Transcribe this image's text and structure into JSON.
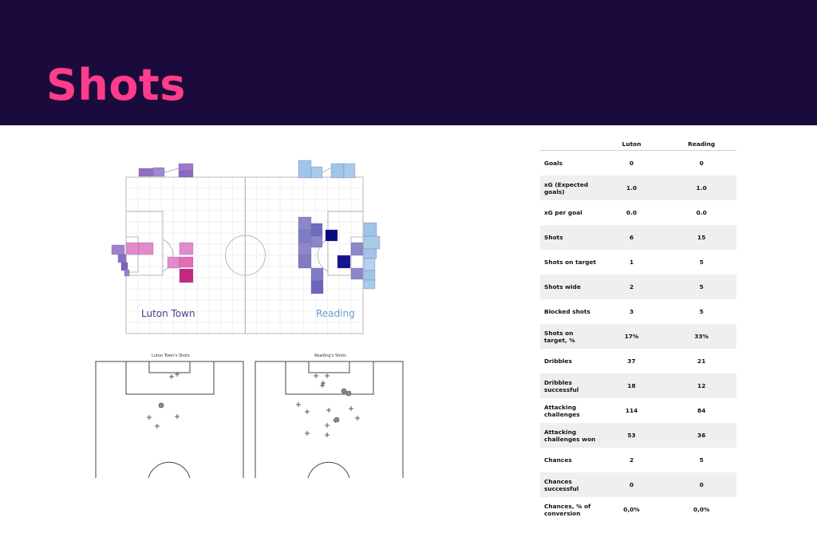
{
  "page": {
    "title": "Shots"
  },
  "colors": {
    "banner": "#1b0a3c",
    "title": "#ff3d8b",
    "luton_label": "#4b3a8c",
    "reading_label": "#6a9ed3"
  },
  "chart_data": [
    {
      "type": "heatmap",
      "title": "",
      "teams": [
        {
          "name": "Luton Town",
          "attacking": "left"
        },
        {
          "name": "Reading",
          "attacking": "right"
        }
      ]
    },
    {
      "type": "scatter",
      "title": "Luton Town's Shots",
      "markers": [
        "cross",
        "circle"
      ]
    },
    {
      "type": "scatter",
      "title": "Reading's Shots",
      "markers": [
        "cross",
        "circle"
      ]
    },
    {
      "type": "table",
      "columns": [
        "",
        "Luton",
        "Reading"
      ],
      "rows": [
        {
          "label": "Goals",
          "luton": "0",
          "reading": "0"
        },
        {
          "label": "xG (Expected goals)",
          "luton": "1.0",
          "reading": "1.0"
        },
        {
          "label": "xG per goal",
          "luton": "0.0",
          "reading": "0.0"
        },
        {
          "label": "Shots",
          "luton": "6",
          "reading": "15"
        },
        {
          "label": "Shots on target",
          "luton": "1",
          "reading": "5"
        },
        {
          "label": "Shots wide",
          "luton": "2",
          "reading": "5"
        },
        {
          "label": "Blocked shots",
          "luton": "3",
          "reading": "5"
        },
        {
          "label": "Shots on target, %",
          "luton": "17%",
          "reading": "33%"
        },
        {
          "label": "Dribbles",
          "luton": "37",
          "reading": "21"
        },
        {
          "label": "Dribbles successful",
          "luton": "18",
          "reading": "12"
        },
        {
          "label": "Attacking challenges",
          "luton": "114",
          "reading": "84"
        },
        {
          "label": "Attacking challenges won",
          "luton": "53",
          "reading": "36"
        },
        {
          "label": "Chances",
          "luton": "2",
          "reading": "5"
        },
        {
          "label": "Chances successful",
          "luton": "0",
          "reading": "0"
        },
        {
          "label": "Chances, % of conversion",
          "luton": "0,0%",
          "reading": "0,0%"
        }
      ]
    }
  ]
}
